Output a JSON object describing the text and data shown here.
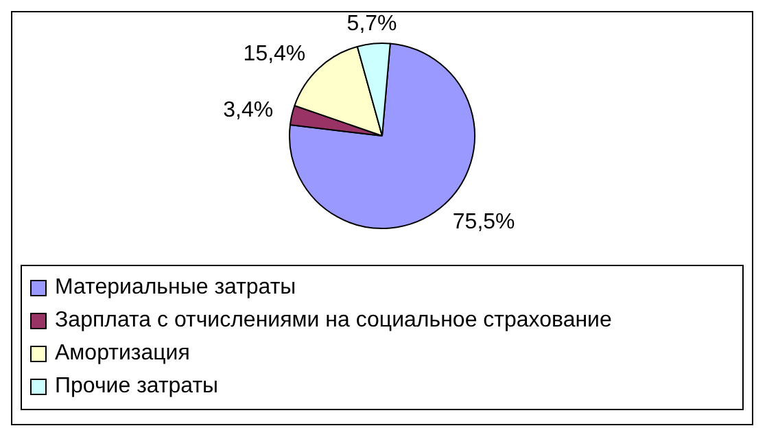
{
  "chart_data": {
    "type": "pie",
    "categories": [
      "Материальные затраты",
      "Зарплата с отчислениями на социальное страхование",
      "Амортизация",
      "Прочие затраты"
    ],
    "values": [
      75.5,
      3.4,
      15.4,
      5.7
    ],
    "colors": [
      "#9999ff",
      "#993366",
      "#ffffcc",
      "#ccffff"
    ],
    "value_labels": [
      "75,5%",
      "3,4%",
      "15,4%",
      "5,7%"
    ],
    "legend": "bottom"
  }
}
